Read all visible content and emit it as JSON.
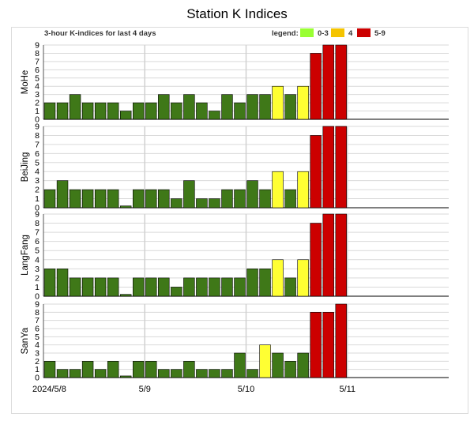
{
  "title": "Station K Indices",
  "subtitle": "3-hour K-indices for last 4 days",
  "legend": {
    "label": "legend:",
    "items": [
      {
        "label": "0-3",
        "color": "#99ff33"
      },
      {
        "label": "4",
        "color": "#f5c400"
      },
      {
        "label": "5-9",
        "color": "#cc0000"
      }
    ]
  },
  "colors": {
    "low": "#3f7818",
    "mid": "#ffff33",
    "high": "#cc0000"
  },
  "chart_data": {
    "type": "bar",
    "x_ticks": [
      "2024/5/8",
      "5/9",
      "5/10",
      "5/11"
    ],
    "ylim": [
      0,
      9
    ],
    "y_ticks": [
      0,
      1,
      2,
      3,
      4,
      5,
      6,
      7,
      8,
      9
    ],
    "slots_per_day": 8,
    "total_slots": 32,
    "series": [
      {
        "name": "MoHe",
        "values": [
          2,
          2,
          3,
          2,
          2,
          2,
          1,
          2,
          2,
          3,
          2,
          3,
          2,
          1,
          3,
          2,
          3,
          3,
          4,
          3,
          4,
          8,
          9,
          9
        ]
      },
      {
        "name": "BeiJing",
        "values": [
          2,
          3,
          2,
          2,
          2,
          2,
          0.2,
          2,
          2,
          2,
          1,
          3,
          1,
          1,
          2,
          2,
          3,
          2,
          4,
          2,
          4,
          8,
          9,
          9
        ]
      },
      {
        "name": "LangFang",
        "values": [
          3,
          3,
          2,
          2,
          2,
          2,
          0.2,
          2,
          2,
          2,
          1,
          2,
          2,
          2,
          2,
          2,
          3,
          3,
          4,
          2,
          4,
          8,
          9,
          9
        ]
      },
      {
        "name": "SanYa",
        "values": [
          2,
          1,
          1,
          2,
          1,
          2,
          0.2,
          2,
          2,
          1,
          1,
          2,
          1,
          1,
          1,
          3,
          1,
          4,
          3,
          2,
          3,
          8,
          8,
          9
        ]
      }
    ]
  }
}
